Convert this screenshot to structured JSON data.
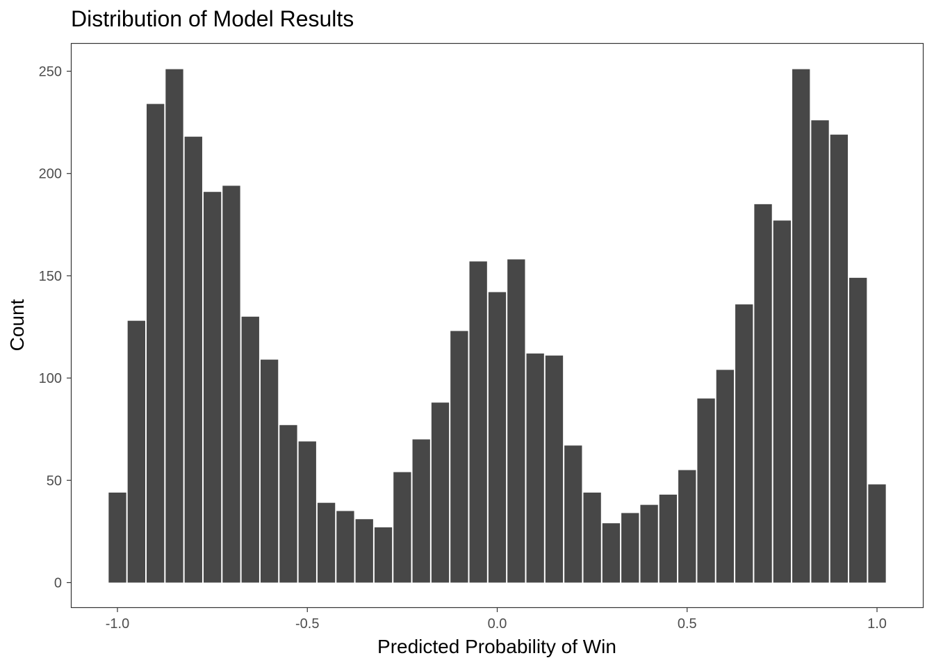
{
  "chart_data": {
    "type": "bar",
    "title": "Distribution of Model Results",
    "xlabel": "Predicted Probability of Win",
    "ylabel": "Count",
    "xlim": [
      -1.0,
      1.0
    ],
    "ylim": [
      0,
      250
    ],
    "x_ticks": [
      -1.0,
      -0.5,
      0.0,
      0.5,
      1.0
    ],
    "x_tick_labels": [
      "-1.0",
      "-0.5",
      "0.0",
      "0.5",
      "1.0"
    ],
    "y_ticks": [
      0,
      50,
      100,
      150,
      200,
      250
    ],
    "y_tick_labels": [
      "0",
      "50",
      "100",
      "150",
      "200",
      "250"
    ],
    "bin_width": 0.05,
    "bin_centers": [
      -1.0,
      -0.95,
      -0.9,
      -0.85,
      -0.8,
      -0.75,
      -0.7,
      -0.65,
      -0.6,
      -0.55,
      -0.5,
      -0.45,
      -0.4,
      -0.35,
      -0.3,
      -0.25,
      -0.2,
      -0.15,
      -0.1,
      -0.05,
      0.0,
      0.05,
      0.1,
      0.15,
      0.2,
      0.25,
      0.3,
      0.35,
      0.4,
      0.45,
      0.5,
      0.55,
      0.6,
      0.65,
      0.7,
      0.75,
      0.8,
      0.85,
      0.9,
      0.95,
      1.0
    ],
    "values": [
      44,
      128,
      234,
      251,
      218,
      191,
      194,
      130,
      109,
      77,
      69,
      39,
      35,
      31,
      27,
      54,
      70,
      88,
      123,
      157,
      142,
      158,
      112,
      111,
      67,
      44,
      29,
      34,
      38,
      43,
      55,
      90,
      104,
      136,
      185,
      177,
      251,
      226,
      219,
      149,
      48
    ],
    "bar_color": "#474747",
    "panel_border_color": "#333333",
    "grid": false,
    "legend": "none"
  }
}
